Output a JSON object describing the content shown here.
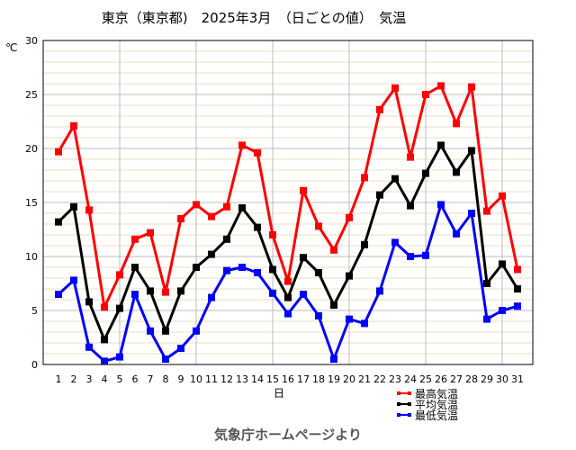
{
  "chart_data": {
    "type": "line",
    "title": "東京（東京都)　2025年3月　（日ごとの値）　気温",
    "xlabel": "日",
    "ylabel": "℃",
    "ylim": [
      0,
      30
    ],
    "yticks": [
      0,
      5,
      10,
      15,
      20,
      25,
      30
    ],
    "grid": true,
    "legend_position": "bottom-right",
    "x": [
      1,
      2,
      3,
      4,
      5,
      6,
      7,
      8,
      9,
      10,
      11,
      12,
      13,
      14,
      15,
      16,
      17,
      18,
      19,
      20,
      21,
      22,
      23,
      24,
      25,
      26,
      27,
      28,
      29,
      30,
      31
    ],
    "series": [
      {
        "name": "最高気温",
        "color": "#ff0000",
        "values": [
          19.7,
          22.1,
          14.3,
          5.3,
          8.3,
          11.6,
          12.2,
          6.7,
          13.5,
          14.8,
          13.7,
          14.6,
          20.3,
          19.6,
          12.0,
          7.7,
          16.1,
          12.8,
          10.6,
          13.6,
          17.3,
          23.6,
          25.6,
          19.2,
          25.0,
          25.8,
          22.3,
          25.7,
          14.2,
          15.6,
          8.8
        ]
      },
      {
        "name": "平均気温",
        "color": "#000000",
        "values": [
          13.2,
          14.6,
          5.8,
          2.3,
          5.2,
          9.0,
          6.8,
          3.1,
          6.8,
          9.0,
          10.2,
          11.6,
          14.5,
          12.7,
          8.8,
          6.2,
          9.9,
          8.5,
          5.5,
          8.2,
          11.1,
          15.7,
          17.2,
          14.7,
          17.7,
          20.3,
          17.8,
          19.8,
          7.5,
          9.3,
          7.0
        ]
      },
      {
        "name": "最低気温",
        "color": "#0000ff",
        "values": [
          6.5,
          7.8,
          1.6,
          0.3,
          0.7,
          6.5,
          3.1,
          0.5,
          1.5,
          3.1,
          6.2,
          8.7,
          9.0,
          8.5,
          6.6,
          4.7,
          6.5,
          4.5,
          0.5,
          4.2,
          3.8,
          6.8,
          11.3,
          10.0,
          10.1,
          14.8,
          12.1,
          14.0,
          4.2,
          5.0,
          5.4
        ]
      }
    ]
  },
  "footer": "気象庁ホームページより"
}
